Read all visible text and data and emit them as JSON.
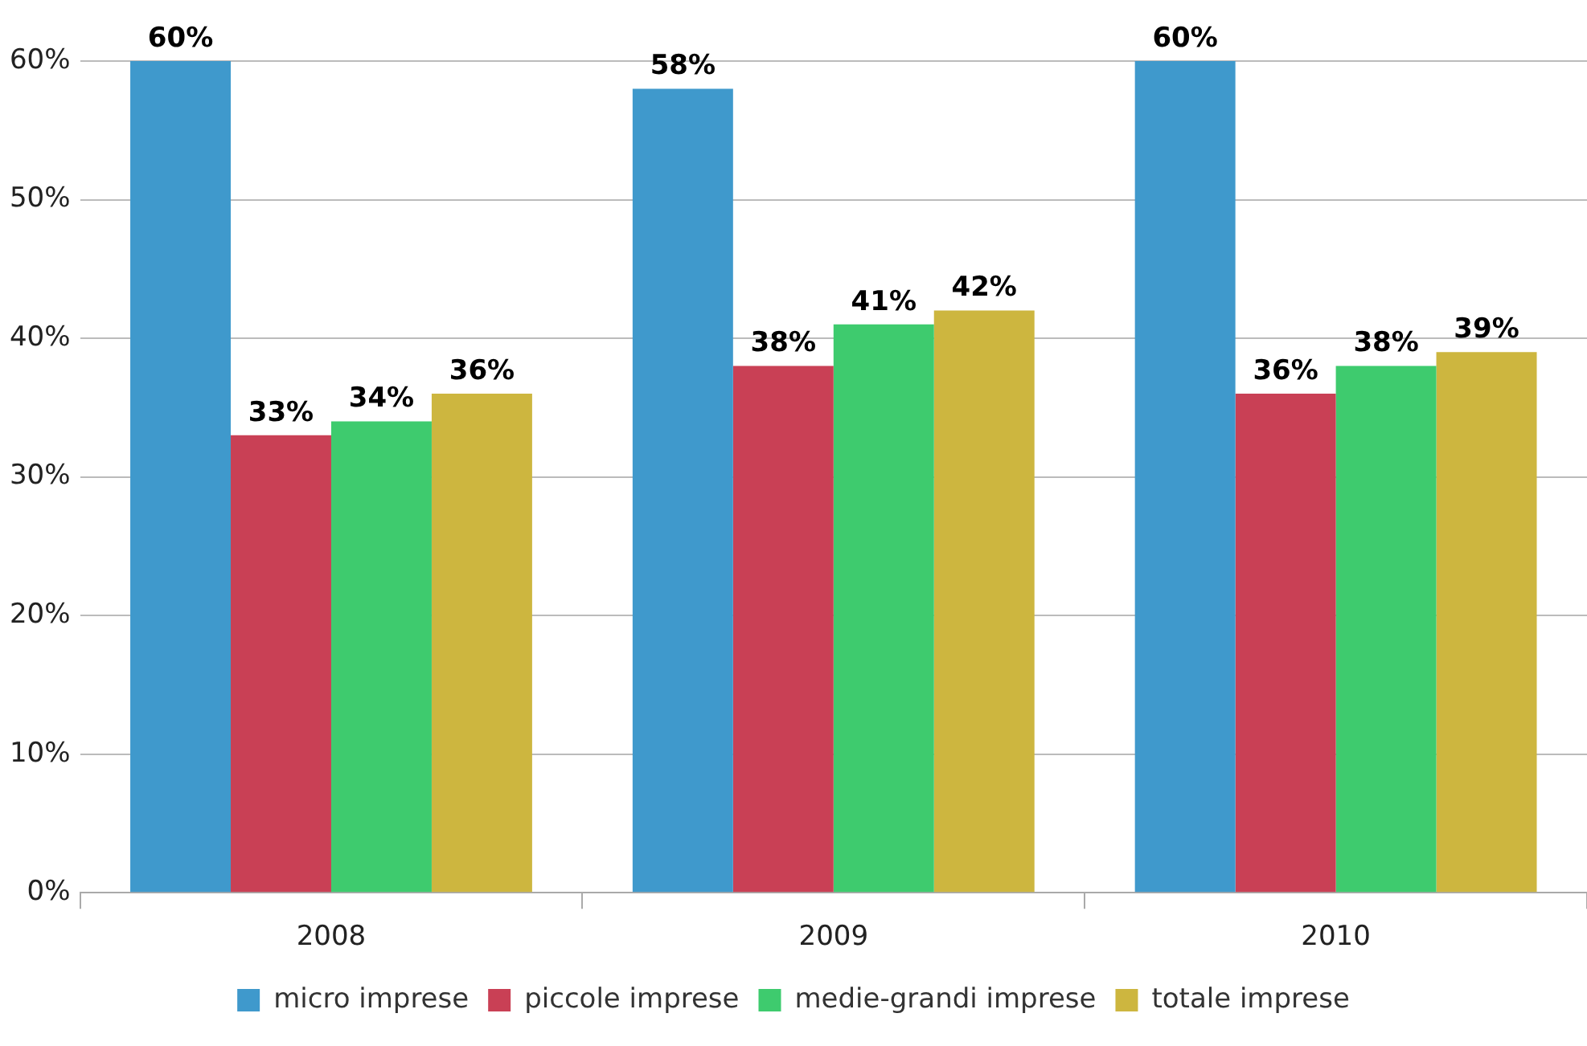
{
  "chart_data": {
    "type": "bar",
    "categories": [
      "2008",
      "2009",
      "2010"
    ],
    "series": [
      {
        "name": "micro imprese",
        "color": "#3f99cc",
        "values": [
          60,
          58,
          60
        ],
        "value_labels": [
          "60%",
          "58%",
          "60%"
        ]
      },
      {
        "name": "piccole imprese",
        "color": "#c94055",
        "values": [
          33,
          38,
          36
        ],
        "value_labels": [
          "33%",
          "38%",
          "36%"
        ]
      },
      {
        "name": "medie-grandi imprese",
        "color": "#3ecb6e",
        "values": [
          34,
          41,
          38
        ],
        "value_labels": [
          "34%",
          "41%",
          "38%"
        ]
      },
      {
        "name": "totale imprese",
        "color": "#cdb63f",
        "values": [
          36,
          42,
          39
        ],
        "value_labels": [
          "36%",
          "42%",
          "39%"
        ]
      }
    ],
    "ylim": [
      0,
      60
    ],
    "yticks": [
      {
        "value": 0,
        "label": "0%"
      },
      {
        "value": 10,
        "label": "10%"
      },
      {
        "value": 20,
        "label": "20%"
      },
      {
        "value": 30,
        "label": "30%"
      },
      {
        "value": 40,
        "label": "40%"
      },
      {
        "value": 50,
        "label": "50%"
      },
      {
        "value": 60,
        "label": "60%"
      }
    ],
    "grid": "y",
    "legend": "bottom"
  }
}
